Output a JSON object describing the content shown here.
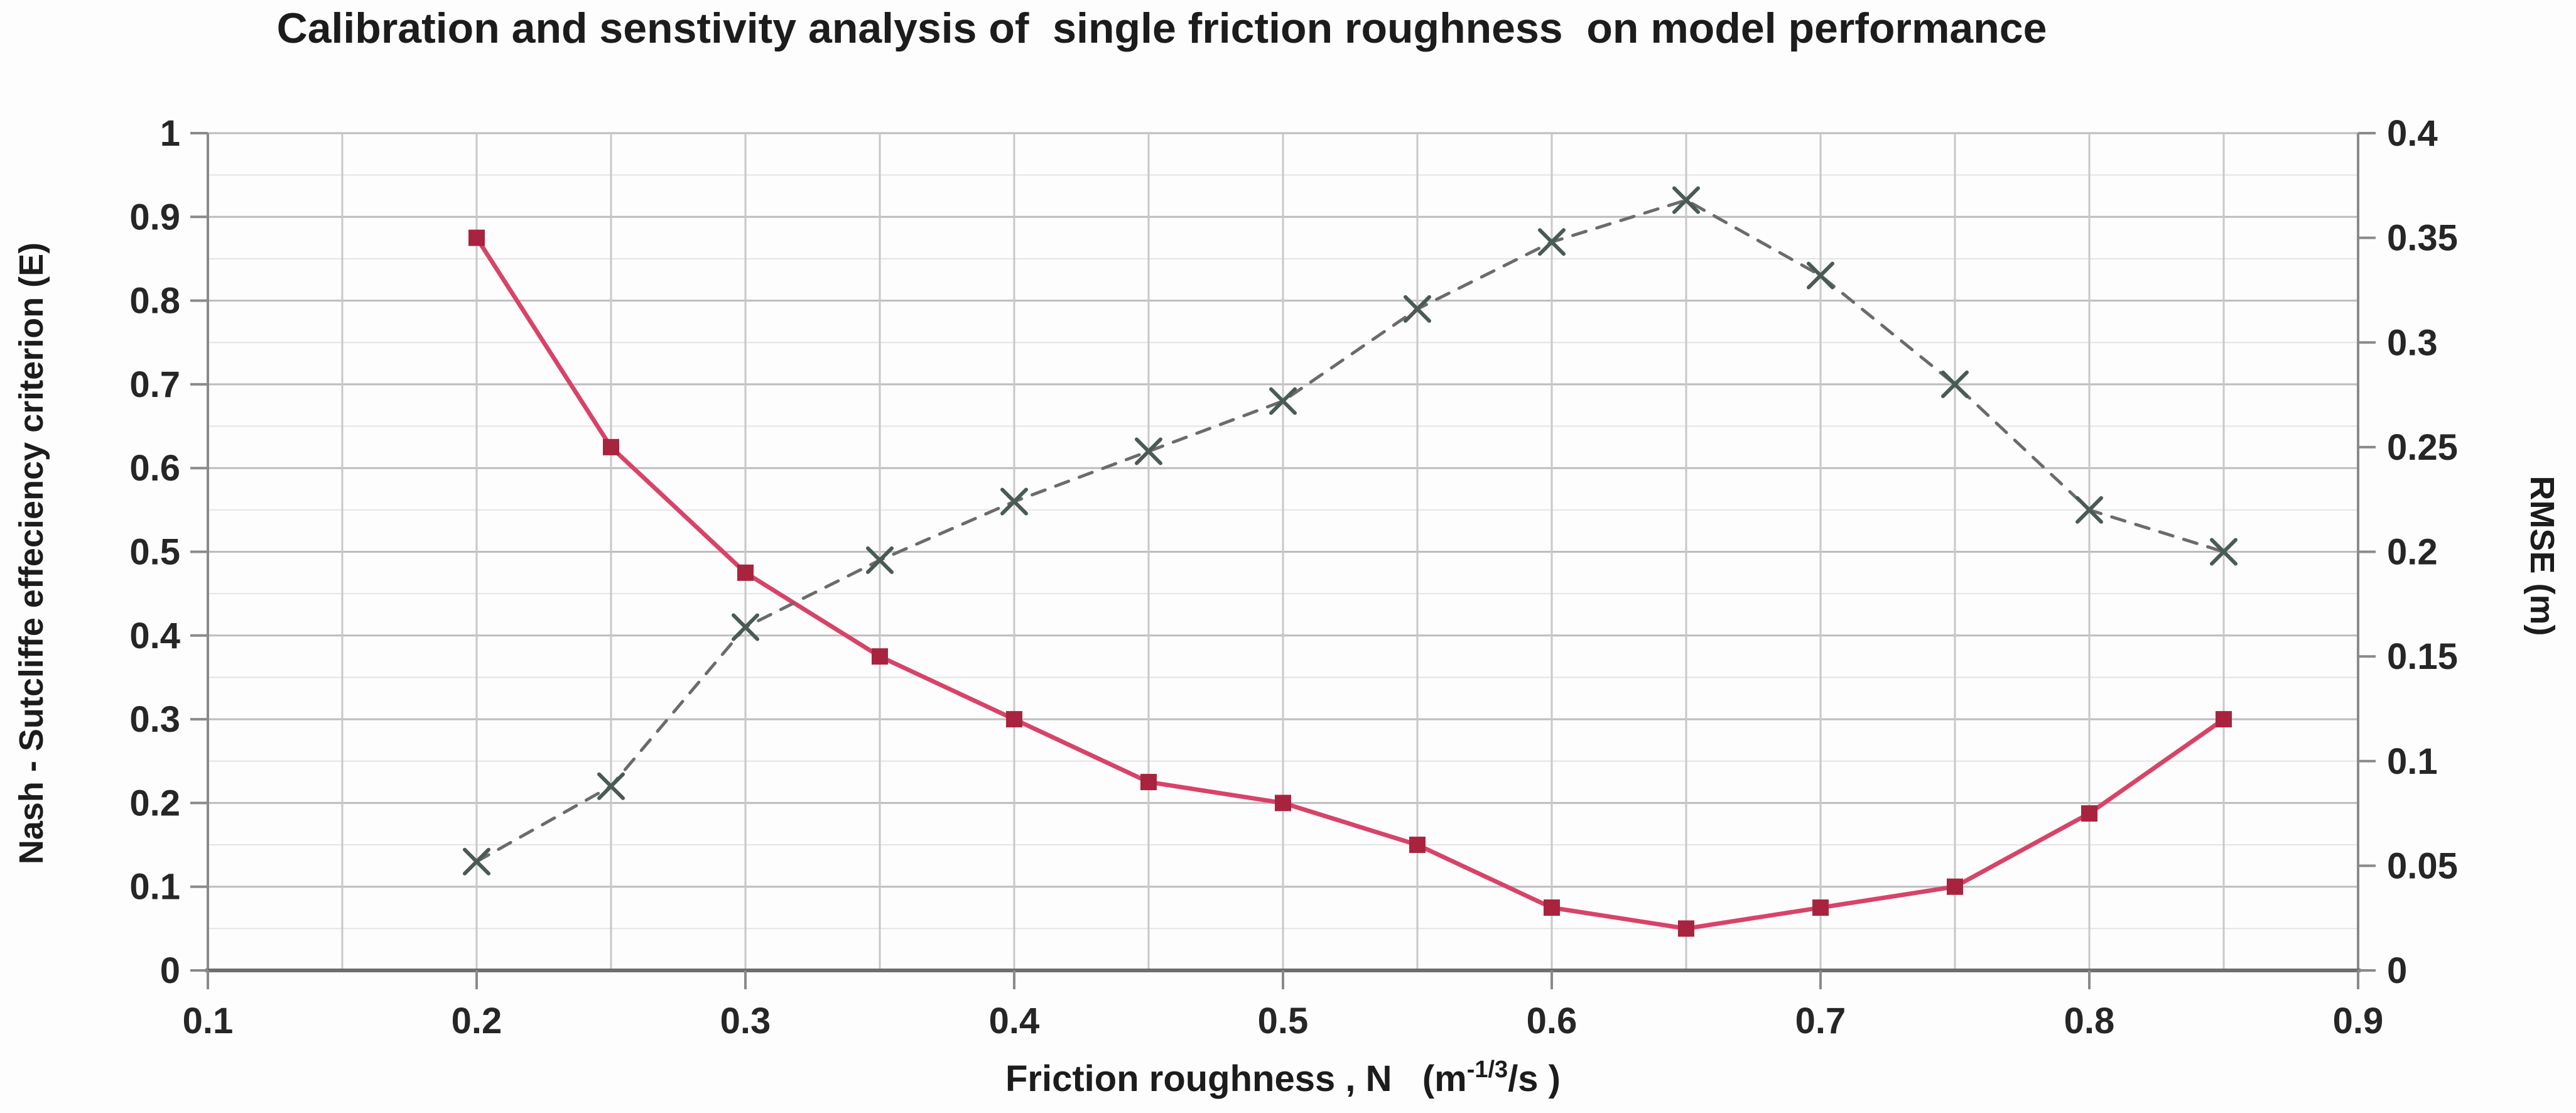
{
  "chart_data": {
    "type": "line",
    "title": "Calibration and senstivity analysis of  single friction roughness  on model performance",
    "xlabel_parts": {
      "pre": "Friction roughness , N   (m",
      "sup": "-1/3",
      "post": "/s )"
    },
    "y_left": {
      "label": "Nash - Sutcliffe effeciency criterion (E)",
      "min": 0,
      "max": 1,
      "tick_labels": [
        "1",
        "0.9",
        "0.8",
        "0.7",
        "0.6",
        "0.5",
        "0.4",
        "0.3",
        "0.2",
        "0.1",
        "0"
      ],
      "major_unit": 0.1,
      "minor_unit": 0.05
    },
    "y_right": {
      "label": "RMSE (m)",
      "min": 0,
      "max": 0.4,
      "tick_labels": [
        "0.4",
        "0.35",
        "0.3",
        "0.25",
        "0.2",
        "0.15",
        "0.1",
        "0.05",
        "0"
      ],
      "major_unit": 0.05
    },
    "x_axis": {
      "min": 0.1,
      "max": 0.9,
      "tick_labels": [
        "0.1",
        "0.2",
        "0.3",
        "0.4",
        "0.5",
        "0.6",
        "0.7",
        "0.8",
        "0.9"
      ],
      "gridline_step": 0.05
    },
    "x": [
      0.2,
      0.25,
      0.3,
      0.35,
      0.4,
      0.45,
      0.5,
      0.55,
      0.6,
      0.65,
      0.7,
      0.75,
      0.8,
      0.85
    ],
    "series": [
      {
        "name": "RMSE (m)",
        "axis": "right",
        "line_style": "solid",
        "marker": "square",
        "line_color": "#d84368",
        "marker_color": "#a8243e",
        "values": [
          0.35,
          0.25,
          0.19,
          0.15,
          0.12,
          0.09,
          0.08,
          0.06,
          0.03,
          0.02,
          0.03,
          0.04,
          0.075,
          0.12
        ]
      },
      {
        "name": "Nash - Sutcliffe efficiency (E)",
        "axis": "left",
        "line_style": "dashed",
        "marker": "x",
        "line_color": "#6b6b6b",
        "marker_color": "#4a5a54",
        "values": [
          0.13,
          0.22,
          0.41,
          0.49,
          0.56,
          0.62,
          0.68,
          0.79,
          0.87,
          0.92,
          0.83,
          0.7,
          0.55,
          0.5
        ]
      }
    ],
    "grid": {
      "on": true
    },
    "legend": {
      "visible": false
    },
    "colors": {
      "major_gridline": "#bdbdbd",
      "minor_gridline": "#e4e4e4",
      "vertical_gridline": "#c8c8c8",
      "axis_line": "#8a8a8a",
      "bottom_axis_line": "#6e6e6e",
      "text": "#1c1c1c",
      "background": "#fdfdfd"
    }
  }
}
